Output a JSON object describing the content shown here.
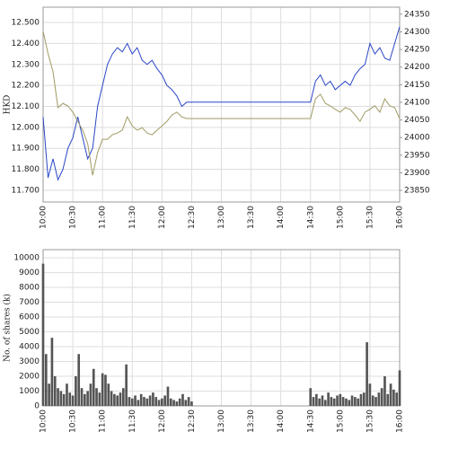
{
  "chart_data": [
    {
      "type": "line",
      "y_label": "HKD",
      "x": [
        600,
        605,
        610,
        615,
        620,
        625,
        630,
        635,
        640,
        645,
        650,
        655,
        660,
        665,
        670,
        675,
        680,
        685,
        690,
        695,
        700,
        705,
        710,
        715,
        720,
        725,
        730,
        735,
        740,
        745,
        750,
        870,
        875,
        880,
        885,
        890,
        895,
        900,
        905,
        910,
        915,
        920,
        925,
        930,
        935,
        940,
        945,
        950,
        955,
        960
      ],
      "xlim": [
        600,
        960
      ],
      "xticks": [
        {
          "value": 600,
          "label": "10:00"
        },
        {
          "value": 630,
          "label": "10:30"
        },
        {
          "value": 660,
          "label": "11:00"
        },
        {
          "value": 690,
          "label": "11:30"
        },
        {
          "value": 720,
          "label": "12:00"
        },
        {
          "value": 750,
          "label": "12:30"
        },
        {
          "value": 780,
          "label": "13:00"
        },
        {
          "value": 810,
          "label": "13:30"
        },
        {
          "value": 840,
          "label": "14:00"
        },
        {
          "value": 870,
          "label": "14:30"
        },
        {
          "value": 900,
          "label": "15:00"
        },
        {
          "value": 930,
          "label": "15:30"
        },
        {
          "value": 960,
          "label": "16:00"
        }
      ],
      "ylim": [
        11.644,
        12.573
      ],
      "yticks": [
        {
          "value": 11.7,
          "label": "11.700"
        },
        {
          "value": 11.8,
          "label": "11.800"
        },
        {
          "value": 11.9,
          "label": "11.900"
        },
        {
          "value": 12.0,
          "label": "12.000"
        },
        {
          "value": 12.1,
          "label": "12.100"
        },
        {
          "value": 12.2,
          "label": "12.200"
        },
        {
          "value": 12.3,
          "label": "12.300"
        },
        {
          "value": 12.4,
          "label": "12.400"
        },
        {
          "value": 12.5,
          "label": "12.500"
        }
      ],
      "y2lim": [
        23817,
        24370
      ],
      "y2ticks": [
        23850,
        23900,
        23950,
        24000,
        24050,
        24100,
        24150,
        24200,
        24250,
        24300,
        24350
      ],
      "grid": true,
      "series": [
        {
          "color": "#2a46c8",
          "axis": "y",
          "values": [
            12.05,
            11.76,
            11.85,
            11.75,
            11.8,
            11.9,
            11.95,
            12.05,
            11.95,
            11.85,
            11.9,
            12.1,
            12.2,
            12.3,
            12.35,
            12.38,
            12.36,
            12.4,
            12.35,
            12.38,
            12.32,
            12.3,
            12.32,
            12.28,
            12.25,
            12.2,
            12.18,
            12.15,
            12.1,
            12.12,
            12.12,
            12.12,
            12.22,
            12.25,
            12.2,
            12.22,
            12.18,
            12.2,
            12.22,
            12.2,
            12.25,
            12.28,
            12.3,
            12.4,
            12.35,
            12.38,
            12.33,
            12.32,
            12.4,
            12.48
          ]
        },
        {
          "color": "#a09a62",
          "axis": "y2",
          "values": [
            24302,
            24238,
            24187,
            24085,
            24097,
            24090,
            24072,
            24046,
            24021,
            23983,
            23893,
            23957,
            23995,
            23995,
            24008,
            24013,
            24021,
            24059,
            24033,
            24021,
            24028,
            24013,
            24008,
            24021,
            24033,
            24046,
            24064,
            24072,
            24059,
            24054,
            24054,
            24054,
            24110,
            24123,
            24097,
            24090,
            24080,
            24072,
            24085,
            24080,
            24064,
            24046,
            24072,
            24080,
            24090,
            24072,
            24110,
            24090,
            24085,
            24054
          ]
        }
      ]
    },
    {
      "type": "bar",
      "y_label": "No. of shares (k)",
      "color": "#555555",
      "x": [
        600,
        603,
        606,
        609,
        612,
        615,
        618,
        621,
        624,
        627,
        630,
        633,
        636,
        639,
        642,
        645,
        648,
        651,
        654,
        657,
        660,
        663,
        666,
        669,
        672,
        675,
        678,
        681,
        684,
        687,
        690,
        693,
        696,
        699,
        702,
        705,
        708,
        711,
        714,
        717,
        720,
        723,
        726,
        729,
        732,
        735,
        738,
        741,
        744,
        747,
        750,
        870,
        873,
        876,
        879,
        882,
        885,
        888,
        891,
        894,
        897,
        900,
        903,
        906,
        909,
        912,
        915,
        918,
        921,
        924,
        927,
        930,
        933,
        936,
        939,
        942,
        945,
        948,
        951,
        954,
        957,
        960
      ],
      "values": [
        9600,
        3500,
        1500,
        4600,
        2000,
        1200,
        1000,
        800,
        1500,
        900,
        700,
        2000,
        3500,
        1200,
        800,
        1000,
        1500,
        2500,
        1200,
        900,
        2200,
        2100,
        1500,
        1000,
        800,
        700,
        900,
        1200,
        2800,
        600,
        500,
        700,
        400,
        800,
        600,
        500,
        700,
        900,
        600,
        400,
        500,
        700,
        1300,
        500,
        400,
        300,
        500,
        800,
        400,
        600,
        300,
        1200,
        600,
        800,
        500,
        700,
        400,
        900,
        600,
        500,
        700,
        800,
        600,
        500,
        400,
        700,
        600,
        500,
        800,
        900,
        4300,
        1500,
        700,
        600,
        900,
        1200,
        2000,
        800,
        1500,
        1100,
        900,
        2400
      ],
      "xlim": [
        600,
        960
      ],
      "xticks": [
        {
          "value": 600,
          "label": "10:00"
        },
        {
          "value": 630,
          "label": "10:30"
        },
        {
          "value": 660,
          "label": "11:00"
        },
        {
          "value": 690,
          "label": "11:30"
        },
        {
          "value": 720,
          "label": "12:00"
        },
        {
          "value": 750,
          "label": "12:30"
        },
        {
          "value": 780,
          "label": "13:00"
        },
        {
          "value": 810,
          "label": "13:30"
        },
        {
          "value": 840,
          "label": "14:00"
        },
        {
          "value": 870,
          "label": "14:30"
        },
        {
          "value": 900,
          "label": "15:00"
        },
        {
          "value": 930,
          "label": "15:30"
        },
        {
          "value": 960,
          "label": "16:00"
        }
      ],
      "ylim": [
        0,
        10550
      ],
      "yticks": [
        0,
        1000,
        2000,
        3000,
        4000,
        5000,
        6000,
        7000,
        8000,
        9000,
        10000
      ],
      "grid": true
    }
  ]
}
